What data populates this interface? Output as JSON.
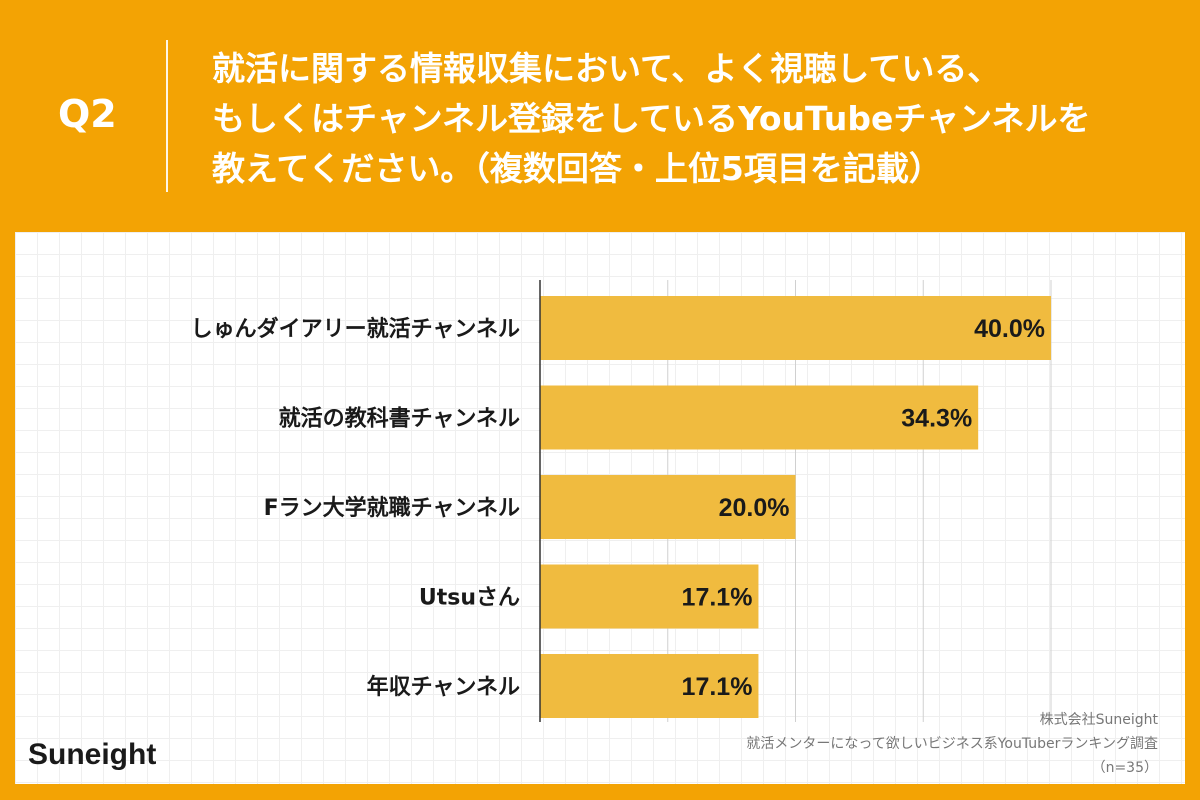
{
  "header": {
    "q_label": "Q2",
    "question_lines": [
      "就活に関する情報収集において、よく視聴している、",
      "もしくはチャンネル登録をしているYouTubeチャンネルを",
      "教えてください。（複数回答・上位5項目を記載）"
    ]
  },
  "chart_data": {
    "type": "bar",
    "orientation": "horizontal",
    "categories": [
      "しゅんダイアリー就活チャンネル",
      "就活の教科書チャンネル",
      "Fラン大学就職チャンネル",
      "Utsuさん",
      "年収チャンネル"
    ],
    "values": [
      40.0,
      34.3,
      20.0,
      17.1,
      17.1
    ],
    "data_labels": [
      "40.0%",
      "34.3%",
      "20.0%",
      "17.1%",
      "17.1%"
    ],
    "xlim": [
      0,
      40
    ],
    "gridlines": [
      0,
      10,
      20,
      30,
      40
    ],
    "grid": true,
    "bar_color": "#f0bb3f"
  },
  "footer": {
    "brand": "Suneight",
    "source_lines": [
      "株式会社Suneight",
      "就活メンターになって欲しいビジネス系YouTuberランキング調査",
      "（n=35）"
    ]
  },
  "colors": {
    "background": "#f3a304",
    "panel": "#ffffff",
    "bar": "#f0bb3f",
    "text": "#1a1a1a"
  }
}
